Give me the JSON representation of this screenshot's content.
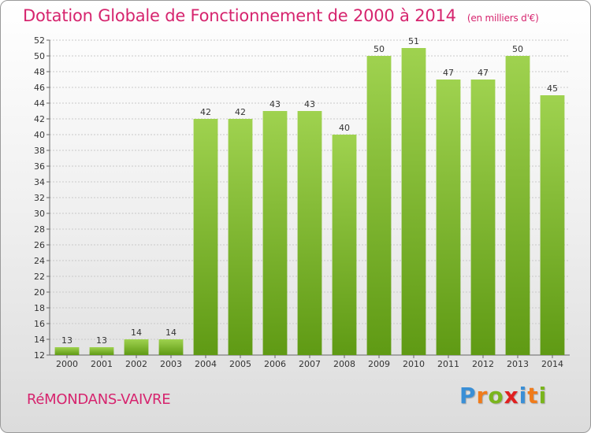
{
  "header": {
    "title": "Dotation Globale de Fonctionnement de 2000 à 2014",
    "unit": "(en milliers d'€)"
  },
  "footer": {
    "commune": "RéMONDANS-VAIVRE",
    "logo_letters": [
      "P",
      "r",
      "o",
      "x",
      "i",
      "t",
      "i"
    ],
    "logo_colors": [
      "#3a8fd6",
      "#f07b1b",
      "#7ab51d",
      "#e02020",
      "#3a8fd6",
      "#f07b1b",
      "#7ab51d"
    ]
  },
  "colors": {
    "title": "#d6246e",
    "bar_light": "#9fd24f",
    "bar_dark": "#5f9a14"
  },
  "chart_data": {
    "type": "bar",
    "categories": [
      "2000",
      "2001",
      "2002",
      "2003",
      "2004",
      "2005",
      "2006",
      "2007",
      "2008",
      "2009",
      "2010",
      "2011",
      "2012",
      "2013",
      "2014"
    ],
    "values": [
      13,
      13,
      14,
      14,
      42,
      42,
      43,
      43,
      40,
      50,
      51,
      47,
      47,
      50,
      45
    ],
    "title": "Dotation Globale de Fonctionnement de 2000 à 2014",
    "ylim": [
      12,
      52
    ],
    "yticks": [
      12,
      14,
      16,
      18,
      20,
      22,
      24,
      26,
      28,
      30,
      32,
      34,
      36,
      38,
      40,
      42,
      44,
      46,
      48,
      50,
      52
    ],
    "grid": true,
    "data_labels": true
  }
}
